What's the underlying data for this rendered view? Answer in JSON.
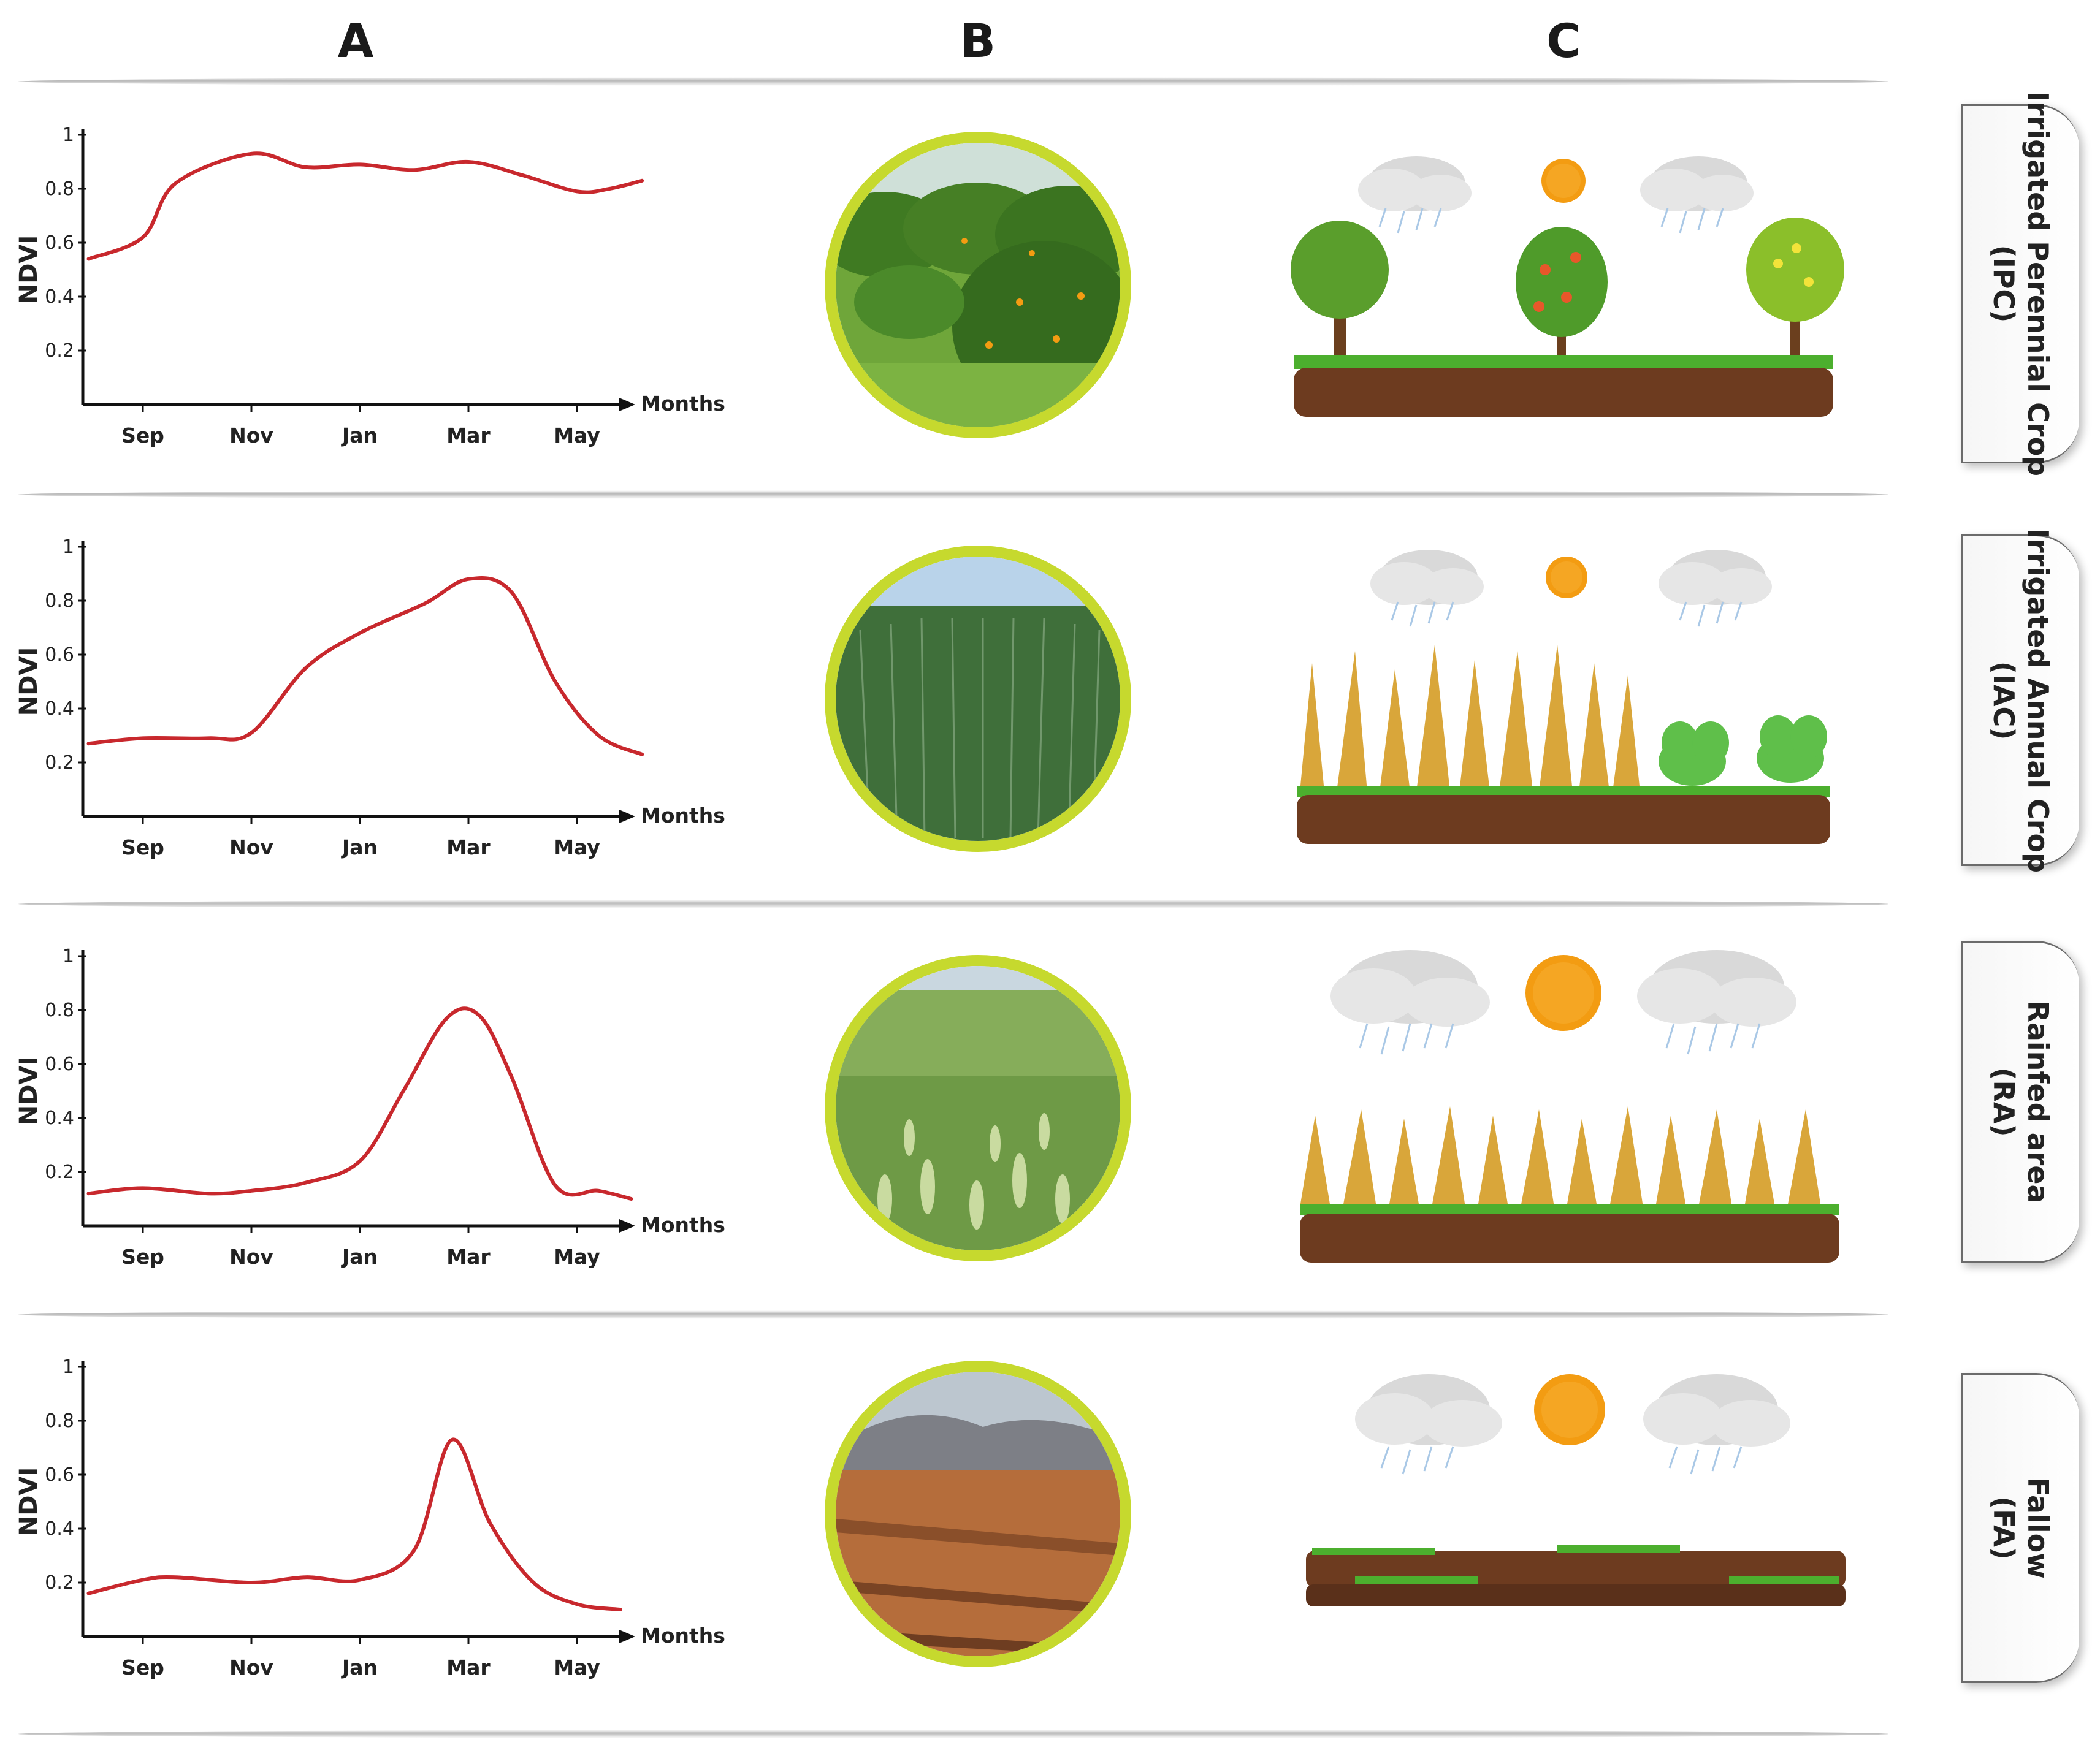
{
  "columns": {
    "a": "A",
    "b": "B",
    "c": "C"
  },
  "colors": {
    "curve": "#c8282d",
    "ring": "#c6d92e",
    "axis": "#111111"
  },
  "chart_data": [
    {
      "type": "line",
      "ylabel": "NDVI",
      "xlabel": "Months",
      "x_ticks": [
        "Sep",
        "Nov",
        "Jan",
        "Mar",
        "May"
      ],
      "y_ticks": [
        "0.2",
        "0.4",
        "0.6",
        "0.8",
        "1"
      ],
      "ylim": [
        0,
        1
      ],
      "series": [
        {
          "x": [
            -0.5,
            0,
            0.3,
            1,
            1.5,
            2,
            2.5,
            3,
            3.5,
            4,
            4.3,
            4.6
          ],
          "y": [
            0.54,
            0.62,
            0.82,
            0.93,
            0.88,
            0.89,
            0.87,
            0.9,
            0.85,
            0.79,
            0.8,
            0.83
          ]
        }
      ]
    },
    {
      "type": "line",
      "ylabel": "NDVI",
      "xlabel": "Months",
      "x_ticks": [
        "Sep",
        "Nov",
        "Jan",
        "Mar",
        "May"
      ],
      "y_ticks": [
        "0.2",
        "0.4",
        "0.6",
        "0.8",
        "1"
      ],
      "ylim": [
        0,
        1
      ],
      "series": [
        {
          "x": [
            -0.5,
            0,
            0.6,
            1,
            1.5,
            2,
            2.6,
            3,
            3.4,
            3.8,
            4.2,
            4.6
          ],
          "y": [
            0.27,
            0.29,
            0.29,
            0.31,
            0.55,
            0.68,
            0.79,
            0.88,
            0.83,
            0.5,
            0.3,
            0.23
          ]
        }
      ]
    },
    {
      "type": "line",
      "ylabel": "NDVI",
      "xlabel": "Months",
      "x_ticks": [
        "Sep",
        "Nov",
        "Jan",
        "Mar",
        "May"
      ],
      "y_ticks": [
        "0.2",
        "0.4",
        "0.6",
        "0.8",
        "1"
      ],
      "ylim": [
        0,
        1
      ],
      "series": [
        {
          "x": [
            -0.5,
            0,
            0.6,
            1,
            1.5,
            2,
            2.4,
            2.8,
            3.1,
            3.4,
            3.8,
            4.2,
            4.5
          ],
          "y": [
            0.12,
            0.14,
            0.12,
            0.13,
            0.16,
            0.24,
            0.5,
            0.77,
            0.78,
            0.55,
            0.15,
            0.13,
            0.1
          ]
        }
      ]
    },
    {
      "type": "line",
      "ylabel": "NDVI",
      "xlabel": "Months",
      "x_ticks": [
        "Sep",
        "Nov",
        "Jan",
        "Mar",
        "May"
      ],
      "y_ticks": [
        "0.2",
        "0.4",
        "0.6",
        "0.8",
        "1"
      ],
      "ylim": [
        0,
        1
      ],
      "series": [
        {
          "x": [
            -0.5,
            0,
            0.3,
            1,
            1.5,
            2,
            2.5,
            2.85,
            3.2,
            3.6,
            4,
            4.4
          ],
          "y": [
            0.16,
            0.21,
            0.22,
            0.2,
            0.22,
            0.21,
            0.32,
            0.73,
            0.42,
            0.2,
            0.12,
            0.1
          ]
        }
      ]
    }
  ],
  "rows": [
    {
      "tab_line1": "Irrigated Perennial Crop",
      "tab_line2": "(IPC)",
      "photo": "orchard-photo",
      "scene": "perennial-trees"
    },
    {
      "tab_line1": "Irrigated Annual Crop",
      "tab_line2": "(IAC)",
      "photo": "irrigated-wheat-photo",
      "scene": "annual-crops"
    },
    {
      "tab_line1": "Rainfed area",
      "tab_line2": "(RA)",
      "photo": "rainfed-wheat-photo",
      "scene": "rainfed-wheat"
    },
    {
      "tab_line1": "Fallow",
      "tab_line2": "(FA)",
      "photo": "fallow-field-photo",
      "scene": "fallow-soil"
    }
  ]
}
